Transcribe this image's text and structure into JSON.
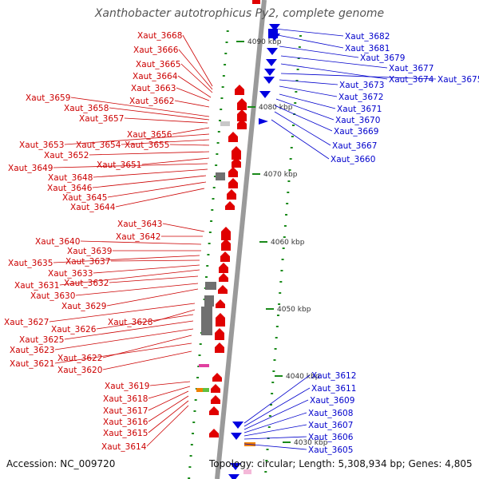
{
  "title": "Xanthobacter autotrophicus Py2, complete genome",
  "accession": "Accession: NC_009720",
  "topology": "Topology: circular; Length: 5,308,934 bp; Genes: 4,805",
  "colors": {
    "minus_strand": "#e00000",
    "plus_strand": "#0000e0",
    "backbone": "#9a9a9a",
    "pseudo": "#707070",
    "label_red": "#cc0000",
    "label_blue": "#0000cc",
    "ruler": "#1a8a1a"
  },
  "ticks": [
    {
      "label": "4030 kbp",
      "kbp": 4030
    },
    {
      "label": "4040 kbp",
      "kbp": 4040
    },
    {
      "label": "4050 kbp",
      "kbp": 4050
    },
    {
      "label": "4060 kbp",
      "kbp": 4060
    },
    {
      "label": "4070 kbp",
      "kbp": 4070
    },
    {
      "label": "4080 kbp",
      "kbp": 4080
    },
    {
      "label": "4090 kbp",
      "kbp": 4090
    }
  ],
  "left_genes": [
    "Xaut_3668",
    "Xaut_3666",
    "Xaut_3665",
    "Xaut_3664",
    "Xaut_3663",
    "Xaut_3662",
    "Xaut_3659",
    "Xaut_3658",
    "Xaut_3657",
    "Xaut_3656",
    "Xaut_3653",
    "Xaut_3654",
    "Xaut_3655",
    "Xaut_3652",
    "Xaut_3651",
    "Xaut_3649",
    "Xaut_3648",
    "Xaut_3646",
    "Xaut_3645",
    "Xaut_3644",
    "Xaut_3643",
    "Xaut_3642",
    "Xaut_3640",
    "Xaut_3639",
    "Xaut_3635",
    "Xaut_3637",
    "Xaut_3633",
    "Xaut_3631",
    "Xaut_3632",
    "Xaut_3630",
    "Xaut_3629",
    "Xaut_3627",
    "Xaut_3628",
    "Xaut_3626",
    "Xaut_3625",
    "Xaut_3623",
    "Xaut_3622",
    "Xaut_3621",
    "Xaut_3620",
    "Xaut_3619",
    "Xaut_3618",
    "Xaut_3617",
    "Xaut_3616",
    "Xaut_3615",
    "Xaut_3614"
  ],
  "right_genes_top": [
    "Xaut_3682",
    "Xaut_3681",
    "Xaut_3679",
    "Xaut_3677",
    "Xaut_3674",
    "Xaut_3675",
    "Xaut_3673",
    "Xaut_3672",
    "Xaut_3671",
    "Xaut_3670",
    "Xaut_3669",
    "Xaut_3667",
    "Xaut_3660"
  ],
  "right_genes_bottom": [
    "Xaut_3612",
    "Xaut_3611",
    "Xaut_3609",
    "Xaut_3608",
    "Xaut_3607",
    "Xaut_3606",
    "Xaut_3605"
  ]
}
